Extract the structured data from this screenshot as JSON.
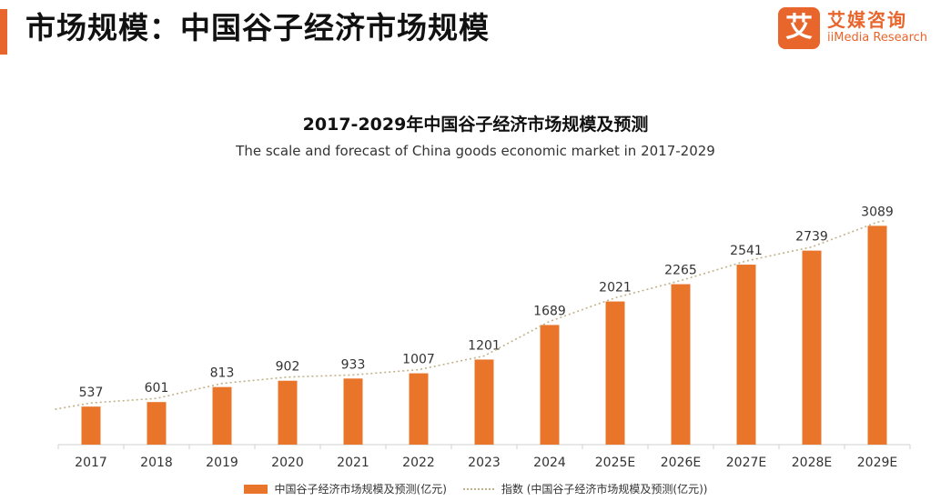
{
  "header": {
    "title": "市场规模：中国谷子经济市场规模",
    "brand_mark": "艾",
    "brand_cn": "艾媒咨询",
    "brand_en": "iiMedia Research",
    "accent_color": "#e8652b"
  },
  "chart_data": {
    "type": "bar",
    "title": "2017-2029年中国谷子经济市场规模及预测",
    "subtitle": "The scale and forecast of China goods economic market in 2017-2029",
    "categories": [
      "2017",
      "2018",
      "2019",
      "2020",
      "2021",
      "2022",
      "2023",
      "2024",
      "2025E",
      "2026E",
      "2027E",
      "2028E",
      "2029E"
    ],
    "series": [
      {
        "name": "中国谷子经济市场规模及预测(亿元)",
        "type": "bar",
        "values": [
          537,
          601,
          813,
          902,
          933,
          1007,
          1201,
          1689,
          2021,
          2265,
          2541,
          2739,
          3089
        ],
        "color": "#e8752a"
      },
      {
        "name": "指数 (中国谷子经济市场规模及预测(亿元))",
        "type": "trendline",
        "style": "dotted",
        "color": "#c2b28a"
      }
    ],
    "value_labels": [
      "537",
      "601",
      "813",
      "902",
      "933",
      "1007",
      "1201",
      "1689",
      "2021",
      "2265",
      "2541",
      "2739",
      "3089"
    ],
    "ylim": [
      0,
      3300
    ],
    "grid": false,
    "legend_position": "bottom"
  }
}
